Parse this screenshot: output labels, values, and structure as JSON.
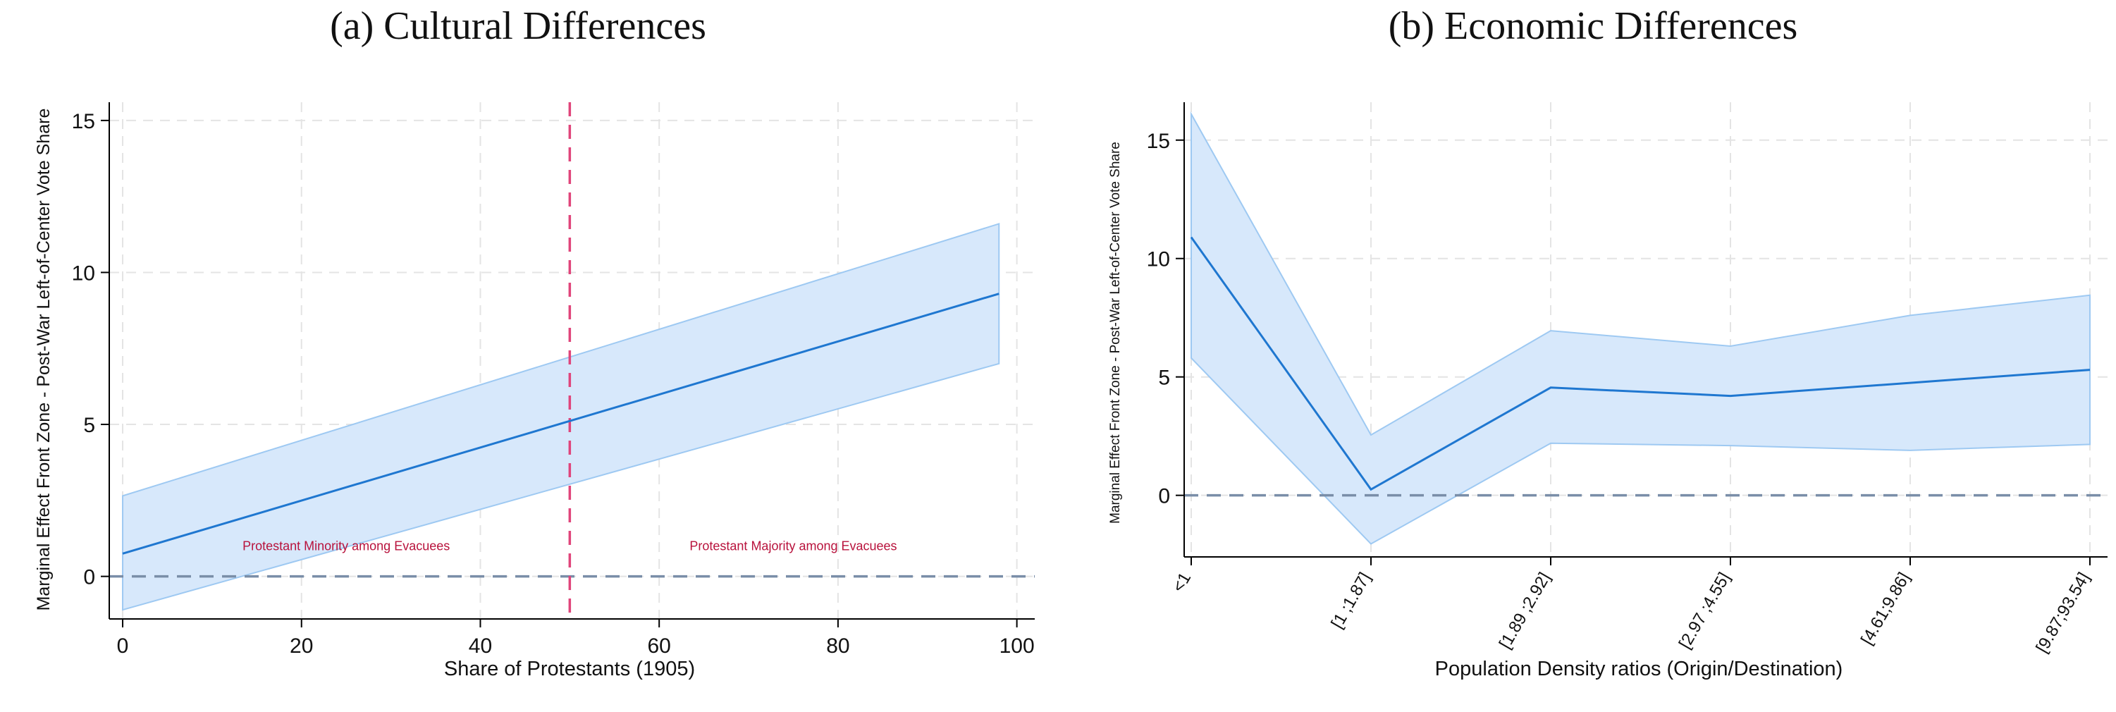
{
  "colors": {
    "band_fill": "#d7e8fb",
    "band_edge": "#9ec9f2",
    "line": "#1f77d0",
    "zero_line": "#7a8ea8",
    "threshold_line": "#e0457b",
    "annotation": "#b8123c",
    "grid": "#e4e4e4"
  },
  "chart_data": [
    {
      "type": "line",
      "title": "(a) Cultural Differences",
      "xlabel": "Share of Protestants (1905)",
      "ylabel": "Marginal Effect Front Zone - Post-War Left-of-Center Vote Share",
      "xlim": [
        -1.5,
        102
      ],
      "ylim": [
        -1.4,
        15.6
      ],
      "x_ticks": [
        0,
        20,
        40,
        60,
        80,
        100
      ],
      "y_ticks": [
        0,
        5,
        10,
        15
      ],
      "grid": true,
      "x": [
        0,
        98
      ],
      "estimate": [
        0.75,
        9.3
      ],
      "ci_lower": [
        -1.1,
        7.0
      ],
      "ci_upper": [
        2.65,
        11.6
      ],
      "reference_lines": {
        "horizontal_y": 0,
        "vertical_x": 50
      },
      "annotations": [
        {
          "text": "Protestant Minority among Evacuees",
          "x": 25,
          "y": 1.0
        },
        {
          "text": "Protestant Majority among Evacuees",
          "x": 75,
          "y": 1.0
        }
      ]
    },
    {
      "type": "line",
      "title": "(b) Economic Differences",
      "xlabel": "Population Density ratios (Origin/Destination)",
      "ylabel": "Marginal Effect Front Zone - Post-War Left-of-Center Vote Share",
      "categories": [
        "<1",
        "[1 ;1.87]",
        "[1.89 ;2.92]",
        "[2.97 ;4.55]",
        "[4.61;9.86]",
        "[9.87;93.54]"
      ],
      "ylim": [
        -2.6,
        16.6
      ],
      "y_ticks": [
        0,
        5,
        10,
        15
      ],
      "grid": true,
      "estimate": [
        10.9,
        0.25,
        4.55,
        4.2,
        4.75,
        5.3
      ],
      "ci_lower": [
        5.8,
        -2.05,
        2.2,
        2.1,
        1.9,
        2.15
      ],
      "ci_upper": [
        16.1,
        2.55,
        6.95,
        6.3,
        7.6,
        8.45
      ],
      "reference_lines": {
        "horizontal_y": 0
      }
    }
  ]
}
